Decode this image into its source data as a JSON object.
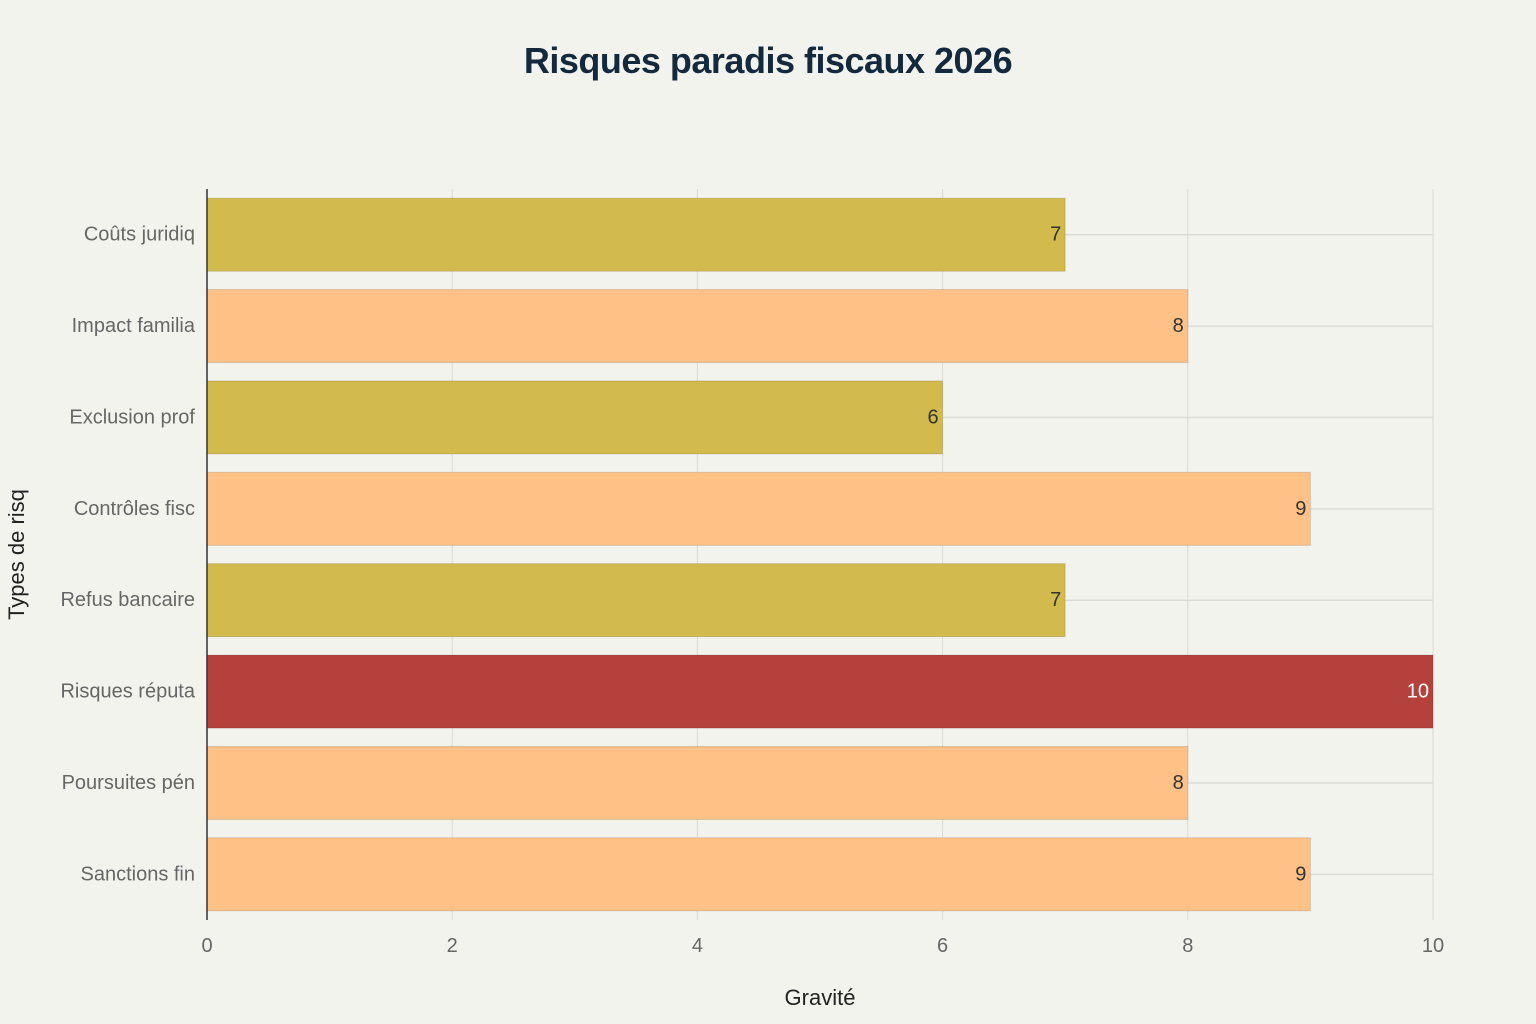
{
  "chart_data": {
    "type": "bar",
    "orientation": "horizontal",
    "title": "Risques paradis fiscaux  2026",
    "xlabel": "Gravité",
    "ylabel": "Types de risq",
    "xlim": [
      0,
      10
    ],
    "xticks": [
      0,
      2,
      4,
      6,
      8,
      10
    ],
    "grid": true,
    "categories": [
      "Sanctions fin",
      "Poursuites pén",
      "Risques réputa",
      "Refus bancaire",
      "Contrôles fisc",
      "Exclusion prof",
      "Impact familia",
      "Coûts juridiq"
    ],
    "values": [
      9,
      8,
      10,
      7,
      9,
      6,
      8,
      7
    ],
    "bar_colors": [
      "#ffc185",
      "#ffc185",
      "#b4413c",
      "#d2ba4c",
      "#ffc185",
      "#d2ba4c",
      "#ffc185",
      "#d2ba4c"
    ],
    "label_colors": [
      "#333333",
      "#333333",
      "#ffffff",
      "#333333",
      "#333333",
      "#333333",
      "#333333",
      "#333333"
    ]
  }
}
